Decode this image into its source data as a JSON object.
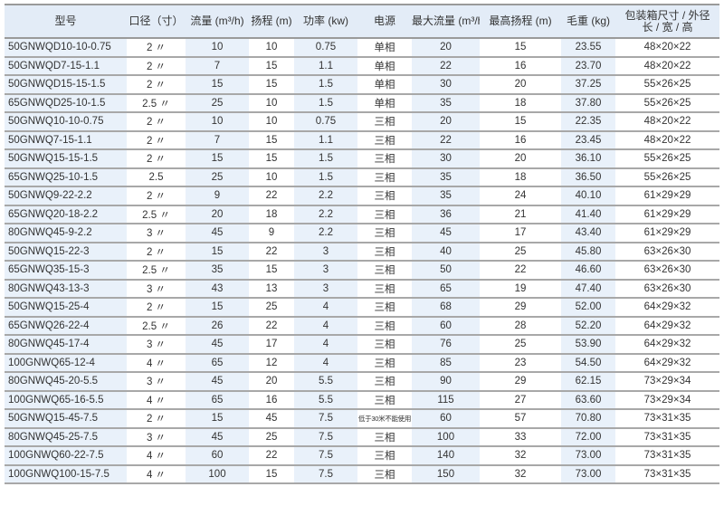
{
  "headers": [
    "型号",
    "口径（寸）",
    "流量 (m³/h)",
    "扬程 (m)",
    "功率 (kw)",
    "电源",
    "最大流量 (m³/h)",
    "最高扬程 (m)",
    "毛重 (kg)",
    "包装箱尺寸 / 外径\n长 / 宽 / 高"
  ],
  "colors": {
    "header_bg": "#e3ecf7",
    "shaded_column_bg": "#e9f1fa",
    "rule": "#a8a8a8"
  },
  "rows": [
    [
      "50GNWQD10-10-0.75",
      "2 〃",
      "10",
      "10",
      "0.75",
      "单相",
      "20",
      "15",
      "23.55",
      "48×20×22"
    ],
    [
      "50GNWQD7-15-1.1",
      "2 〃",
      "7",
      "15",
      "1.1",
      "单相",
      "22",
      "16",
      "23.70",
      "48×20×22"
    ],
    [
      "50GNWQD15-15-1.5",
      "2 〃",
      "15",
      "15",
      "1.5",
      "单相",
      "30",
      "20",
      "37.25",
      "55×26×25"
    ],
    [
      "65GNWQD25-10-1.5",
      "2.5 〃",
      "25",
      "10",
      "1.5",
      "单相",
      "35",
      "18",
      "37.80",
      "55×26×25"
    ],
    [
      "50GNWQ10-10-0.75",
      "2 〃",
      "10",
      "10",
      "0.75",
      "三相",
      "20",
      "15",
      "22.35",
      "48×20×22"
    ],
    [
      "50GNWQ7-15-1.1",
      "2 〃",
      "7",
      "15",
      "1.1",
      "三相",
      "22",
      "16",
      "23.45",
      "48×20×22"
    ],
    [
      "50GNWQ15-15-1.5",
      "2 〃",
      "15",
      "15",
      "1.5",
      "三相",
      "30",
      "20",
      "36.10",
      "55×26×25"
    ],
    [
      "65GNWQ25-10-1.5",
      "2.5",
      "25",
      "10",
      "1.5",
      "三相",
      "35",
      "18",
      "36.50",
      "55×26×25"
    ],
    [
      "50GNWQ9-22-2.2",
      "2 〃",
      "9",
      "22",
      "2.2",
      "三相",
      "35",
      "24",
      "40.10",
      "61×29×29"
    ],
    [
      "65GNWQ20-18-2.2",
      "2.5 〃",
      "20",
      "18",
      "2.2",
      "三相",
      "36",
      "21",
      "41.40",
      "61×29×29"
    ],
    [
      "80GNWQ45-9-2.2",
      "3 〃",
      "45",
      "9",
      "2.2",
      "三相",
      "45",
      "17",
      "43.40",
      "61×29×29"
    ],
    [
      "50GNWQ15-22-3",
      "2 〃",
      "15",
      "22",
      "3",
      "三相",
      "40",
      "25",
      "45.80",
      "63×26×30"
    ],
    [
      "65GNWQ35-15-3",
      "2.5 〃",
      "35",
      "15",
      "3",
      "三相",
      "50",
      "22",
      "46.60",
      "63×26×30"
    ],
    [
      "80GNWQ43-13-3",
      "3 〃",
      "43",
      "13",
      "3",
      "三相",
      "65",
      "19",
      "47.40",
      "63×26×30"
    ],
    [
      "50GNWQ15-25-4",
      "2 〃",
      "15",
      "25",
      "4",
      "三相",
      "68",
      "29",
      "52.00",
      "64×29×32"
    ],
    [
      "65GNWQ26-22-4",
      "2.5 〃",
      "26",
      "22",
      "4",
      "三相",
      "60",
      "28",
      "52.20",
      "64×29×32"
    ],
    [
      "80GNWQ45-17-4",
      "3 〃",
      "45",
      "17",
      "4",
      "三相",
      "76",
      "25",
      "53.90",
      "64×29×32"
    ],
    [
      "100GNWQ65-12-4",
      "4 〃",
      "65",
      "12",
      "4",
      "三相",
      "85",
      "23",
      "54.50",
      "64×29×32"
    ],
    [
      "80GNWQ45-20-5.5",
      "3 〃",
      "45",
      "20",
      "5.5",
      "三相",
      "90",
      "29",
      "62.15",
      "73×29×34"
    ],
    [
      "100GNWQ65-16-5.5",
      "4 〃",
      "65",
      "16",
      "5.5",
      "三相",
      "115",
      "27",
      "63.60",
      "73×29×34"
    ],
    [
      "50GNWQ15-45-7.5",
      "2 〃",
      "15",
      "45",
      "7.5",
      "低于30米不能使用",
      "60",
      "57",
      "70.80",
      "73×31×35"
    ],
    [
      "80GNWQ45-25-7.5",
      "3 〃",
      "45",
      "25",
      "7.5",
      "三相",
      "100",
      "33",
      "72.00",
      "73×31×35"
    ],
    [
      "100GNWQ60-22-7.5",
      "4 〃",
      "60",
      "22",
      "7.5",
      "三相",
      "140",
      "32",
      "73.00",
      "73×31×35"
    ],
    [
      "100GNWQ100-15-7.5",
      "4 〃",
      "100",
      "15",
      "7.5",
      "三相",
      "150",
      "32",
      "73.00",
      "73×31×35"
    ]
  ]
}
